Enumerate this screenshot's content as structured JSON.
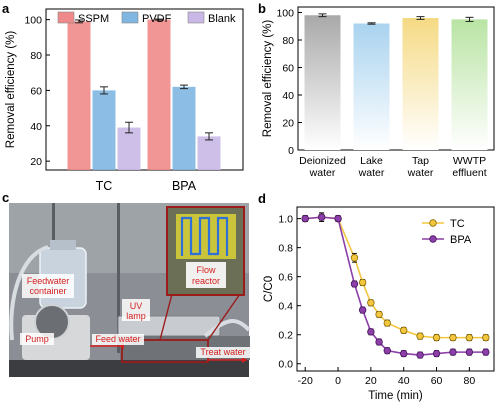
{
  "panel_labels": {
    "a": "a",
    "b": "b",
    "c": "c",
    "d": "d"
  },
  "chart_data": [
    {
      "id": "a",
      "type": "bar",
      "ylabel": "Removal efficiency (%)",
      "ylim": [
        15,
        106
      ],
      "yticks": [
        20,
        40,
        60,
        80,
        100
      ],
      "categories": [
        "TC",
        "BPA"
      ],
      "legend_position": "top",
      "series": [
        {
          "name": "SSPM",
          "color": "#f08a8a",
          "values": [
            99,
            100
          ],
          "errors": [
            0.8,
            0.3
          ]
        },
        {
          "name": "PVDF",
          "color": "#7fb6e2",
          "values": [
            60,
            62
          ],
          "errors": [
            2,
            1
          ]
        },
        {
          "name": "Blank",
          "color": "#c9b8e6",
          "values": [
            39,
            34
          ],
          "errors": [
            3,
            2
          ]
        }
      ]
    },
    {
      "id": "b",
      "type": "bar",
      "ylabel": "Removal efficiency (%)",
      "ylim": [
        0,
        104
      ],
      "yticks": [
        0,
        20,
        40,
        60,
        80,
        100
      ],
      "categories": [
        "Deionized water",
        "Lake water",
        "Tap water",
        "WWTP effluent"
      ],
      "category_lines": [
        [
          "Deionized",
          "water"
        ],
        [
          "Lake",
          "water"
        ],
        [
          "Tap",
          "water"
        ],
        [
          "WWTP",
          "effluent"
        ]
      ],
      "colors": [
        "#a9a9a9",
        "#a9d3ef",
        "#f5da84",
        "#b9e4a4"
      ],
      "values": [
        98,
        92,
        96,
        95
      ],
      "errors": [
        1,
        0.5,
        1,
        1.5
      ]
    },
    {
      "id": "d",
      "type": "line",
      "xlabel": "Time (min)",
      "ylabel": "C/C0",
      "xlim": [
        -25,
        95
      ],
      "ylim": [
        -0.05,
        1.08
      ],
      "xticks": [
        -20,
        0,
        20,
        40,
        60,
        80
      ],
      "yticks": [
        0.0,
        0.2,
        0.4,
        0.6,
        0.8,
        1.0
      ],
      "legend_position": "top-right",
      "series": [
        {
          "name": "TC",
          "color": "#f3c640",
          "marker_edge": "#8a6b00",
          "x": [
            -20,
            -10,
            0,
            10,
            15,
            20,
            25,
            30,
            40,
            50,
            60,
            70,
            80,
            90
          ],
          "y": [
            1.0,
            1.01,
            1.0,
            0.73,
            0.56,
            0.42,
            0.34,
            0.28,
            0.23,
            0.19,
            0.18,
            0.18,
            0.18,
            0.18
          ],
          "err": [
            0.02,
            0.02,
            0.02,
            0.03,
            0.02,
            0.02,
            0.02,
            0.02,
            0.02,
            0.02,
            0.02,
            0.02,
            0.02,
            0.02
          ]
        },
        {
          "name": "BPA",
          "color": "#8b3fa8",
          "marker_edge": "#4a1360",
          "x": [
            -20,
            -10,
            0,
            10,
            15,
            20,
            25,
            30,
            40,
            50,
            60,
            70,
            80,
            90
          ],
          "y": [
            1.0,
            1.01,
            1.0,
            0.55,
            0.37,
            0.22,
            0.15,
            0.09,
            0.07,
            0.06,
            0.07,
            0.08,
            0.08,
            0.08
          ],
          "err": [
            0.02,
            0.03,
            0.02,
            0.02,
            0.02,
            0.02,
            0.02,
            0.02,
            0.02,
            0.02,
            0.02,
            0.02,
            0.02,
            0.02
          ]
        }
      ]
    }
  ],
  "photo_labels": {
    "feedwater": [
      "Feedwater",
      "container"
    ],
    "uv": [
      "UV",
      "lamp"
    ],
    "reactor": [
      "Flow",
      "reactor"
    ],
    "pump": "Pump",
    "feed_water": "Feed water",
    "treat_water": "Treat water"
  },
  "colors": {
    "photo_label": "#d42020",
    "reactor_frame": "#9b1b1b"
  }
}
